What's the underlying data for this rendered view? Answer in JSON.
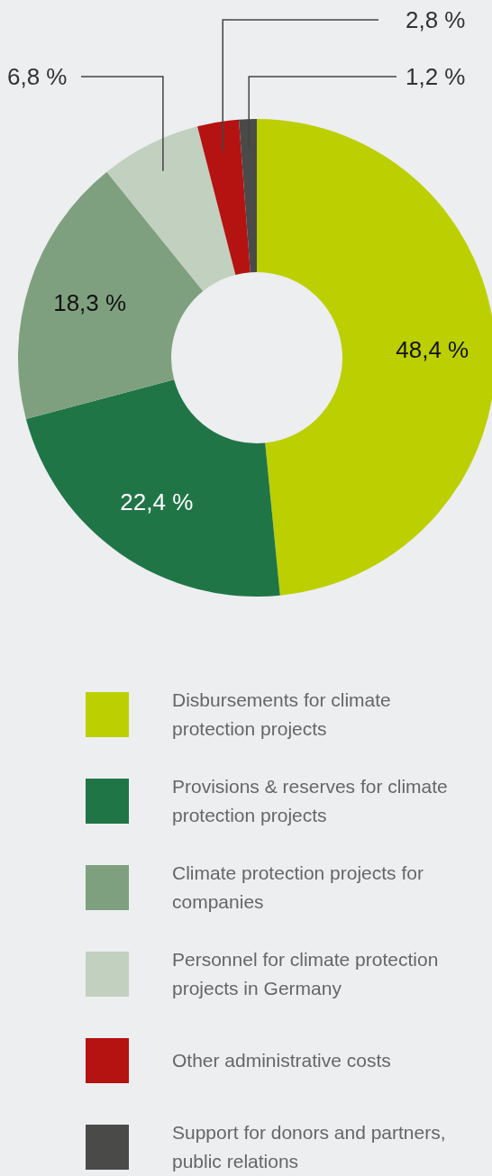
{
  "chart_data": {
    "type": "donut",
    "categories": [
      "Disbursements for climate protection projects",
      "Provisions & reserves for climate protection projects",
      "Climate protection projects for companies",
      "Personnel for climate protection projects in Germany",
      "Other administrative costs",
      "Support for donors and partners, public relations"
    ],
    "values": [
      48.4,
      22.4,
      18.3,
      6.8,
      2.8,
      1.2
    ],
    "colors": [
      "#bccf00",
      "#207547",
      "#7fa07f",
      "#c2d0bf",
      "#b51212",
      "#4a4a48"
    ],
    "value_labels": [
      "48,4 %",
      "22,4 %",
      "18,3 %",
      "6,8 %",
      "2,8 %",
      "1,2 %"
    ],
    "legend": "bottom"
  }
}
